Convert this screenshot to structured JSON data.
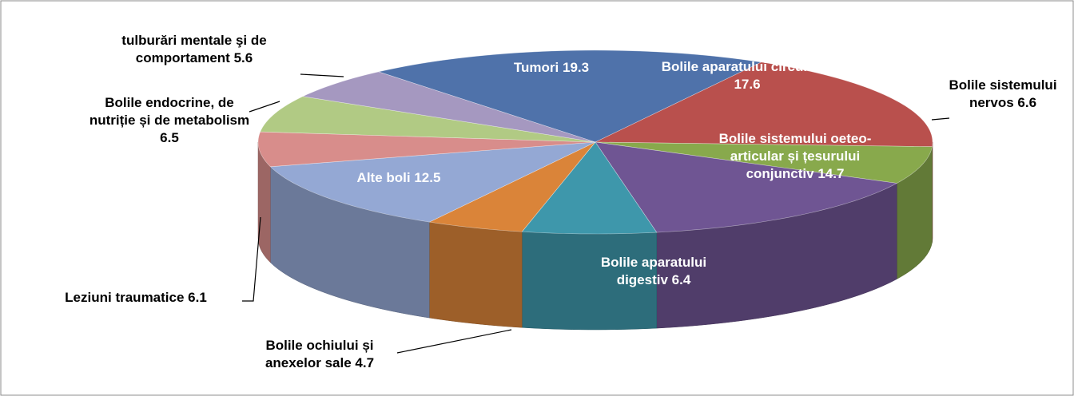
{
  "chart_data": {
    "type": "pie3d",
    "categories": [
      "Tumori",
      "Bolile aparatului circulator",
      "Bolile sistemului nervos",
      "Bolile sistemului oeteo-articular și țesurului conjunctiv",
      "Bolile aparatului digestiv",
      "Bolile ochiului și anexelor sale",
      "Alte boli",
      "Leziuni traumatice",
      "Bolile endocrine, de nutriție și de metabolism",
      "tulburări mentale şi de comportament"
    ],
    "values": [
      19.3,
      17.6,
      6.6,
      14.7,
      6.4,
      4.7,
      12.5,
      6.1,
      6.5,
      5.6
    ],
    "colors": [
      "#4f72aa",
      "#b9504d",
      "#88a94c",
      "#6f5593",
      "#3e97ab",
      "#da8439",
      "#94a8d4",
      "#d88d8b",
      "#b1ca84",
      "#a598c0"
    ]
  }
}
